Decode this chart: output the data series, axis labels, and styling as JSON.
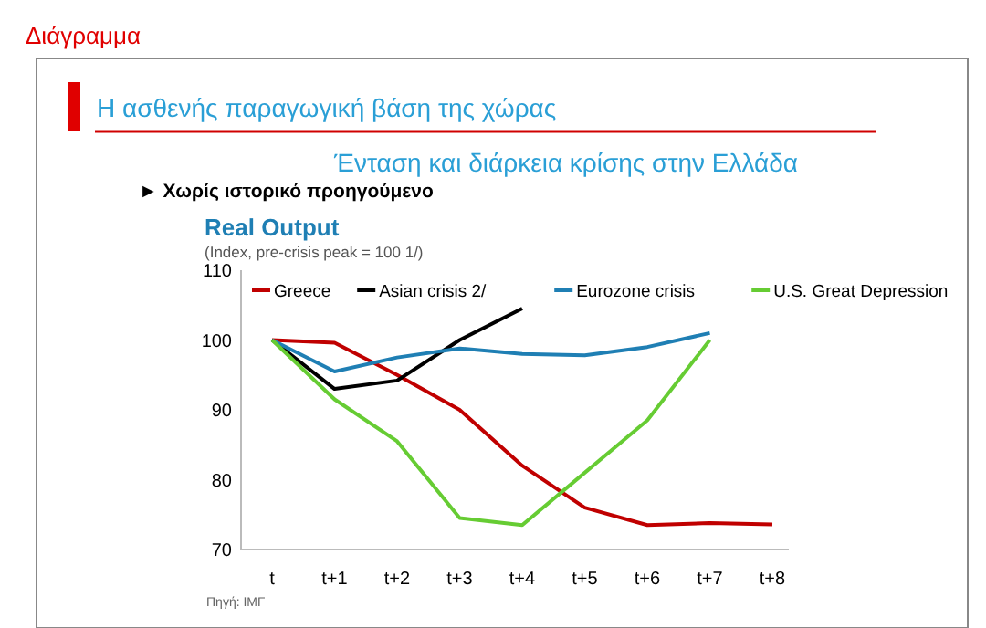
{
  "chart_data": {
    "type": "line",
    "title": "Real Output",
    "subtitle": "(Index, pre-crisis peak = 100 1/)",
    "annotations": [
      "Διάγραμμα",
      "Η ασθενής παραγωγική βάση της χώρας",
      "Ένταση και διάρκεια κρίσης στην Ελλάδα",
      "► Χωρίς ιστορικό προηγούμενο",
      "Πηγή: IMF"
    ],
    "categories": [
      "t",
      "t+1",
      "t+2",
      "t+3",
      "t+4",
      "t+5",
      "t+6",
      "t+7",
      "t+8"
    ],
    "series": [
      {
        "name": "Greece",
        "color": "#c00000",
        "values": [
          100,
          99.6,
          95,
          90,
          82,
          76,
          73.5,
          73.8,
          73.6
        ]
      },
      {
        "name": "Asian crisis 2/",
        "color": "#000000",
        "values": [
          100,
          93,
          94.2,
          100,
          104.5,
          null,
          null,
          null,
          null
        ]
      },
      {
        "name": "Eurozone crisis",
        "color": "#1f7fb4",
        "values": [
          100,
          95.5,
          97.5,
          98.8,
          98,
          97.8,
          99,
          101,
          null
        ]
      },
      {
        "name": "U.S. Great Depression",
        "color": "#66cc33",
        "values": [
          100,
          91.5,
          85.5,
          74.5,
          73.5,
          81,
          88.5,
          100,
          null
        ]
      }
    ],
    "ylim": [
      70,
      110
    ],
    "yticks": [
      70,
      80,
      90,
      100,
      110
    ],
    "grid": false,
    "legend": "top",
    "line_style": "solid",
    "marker": "none"
  }
}
